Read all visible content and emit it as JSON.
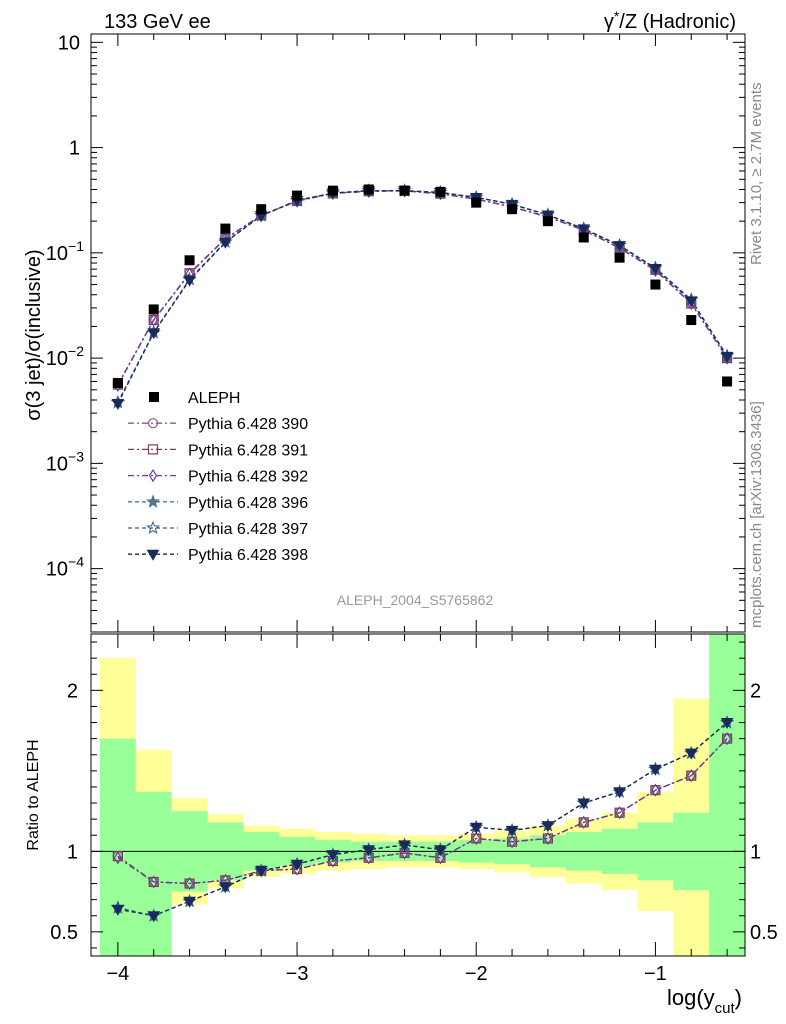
{
  "header": {
    "left": "133 GeV ee",
    "right_main": "γ",
    "right_star": "*",
    "right_rest": "/Z (Hadronic)"
  },
  "side_labels": {
    "rivet": "Rivet 3.1.10, ≥ 2.7M events",
    "mcplots": "mcplots.cern.ch [arXiv:1306.3436]"
  },
  "analysis_id": "ALEPH_2004_S5765862",
  "main_plot": {
    "ylabel": "σ(3 jet)/σ(inclusive)",
    "ytick_labels": [
      {
        "base": "10",
        "exp": "",
        "value": 10
      },
      {
        "base": "1",
        "exp": "",
        "value": 1
      },
      {
        "base": "10",
        "exp": "−1",
        "value": 0.1
      },
      {
        "base": "10",
        "exp": "−2",
        "value": 0.01
      },
      {
        "base": "10",
        "exp": "−3",
        "value": 0.001
      },
      {
        "base": "10",
        "exp": "−4",
        "value": 0.0001
      }
    ]
  },
  "ratio_plot": {
    "ylabel": "Ratio to ALEPH",
    "ytick_labels": [
      "2",
      "1",
      "0.5"
    ]
  },
  "x_axis": {
    "label_main": "log(y",
    "label_sub": "cut",
    "label_close": ")",
    "tick_labels": [
      "−4",
      "−3",
      "−2",
      "−1"
    ]
  },
  "legend": {
    "entries": [
      "ALEPH",
      "Pythia 6.428 390",
      "Pythia 6.428 391",
      "Pythia 6.428 392",
      "Pythia 6.428 396",
      "Pythia 6.428 397",
      "Pythia 6.428 398"
    ]
  },
  "colors": {
    "data": "#000000",
    "s390": "#8a5a8a",
    "s391": "#7a4050",
    "s392": "#6a3d9a",
    "s396": "#4a7a8a",
    "s397": "#3a5a8a",
    "s398": "#1a2a5a",
    "band_inner": "#99ff99",
    "band_outer": "#ffff99"
  },
  "chart_data": {
    "type": "line",
    "x_scale": "linear",
    "y_scale": "log",
    "xlim": [
      -4.15,
      -0.5
    ],
    "ylim": [
      2.5e-05,
      12
    ],
    "ratio_ylim": [
      0.35,
      2.35
    ],
    "x": [
      -4.0,
      -3.8,
      -3.6,
      -3.4,
      -3.2,
      -3.0,
      -2.8,
      -2.6,
      -2.4,
      -2.2,
      -2.0,
      -1.8,
      -1.6,
      -1.4,
      -1.2,
      -1.0,
      -0.8,
      -0.6
    ],
    "data_values": [
      0.0058,
      0.029,
      0.085,
      0.17,
      0.26,
      0.35,
      0.39,
      0.4,
      0.39,
      0.38,
      0.3,
      0.26,
      0.2,
      0.14,
      0.09,
      0.05,
      0.023,
      0.006
    ],
    "series": [
      {
        "name": "Pythia 6.428 390",
        "values": [
          0.0056,
          0.023,
          0.064,
          0.137,
          0.227,
          0.311,
          0.368,
          0.385,
          0.39,
          0.365,
          0.324,
          0.274,
          0.219,
          0.165,
          0.112,
          0.069,
          0.033,
          0.01
        ]
      },
      {
        "name": "Pythia 6.428 391",
        "values": [
          0.0056,
          0.023,
          0.064,
          0.137,
          0.227,
          0.311,
          0.368,
          0.385,
          0.39,
          0.365,
          0.324,
          0.274,
          0.219,
          0.165,
          0.112,
          0.069,
          0.033,
          0.01
        ]
      },
      {
        "name": "Pythia 6.428 392",
        "values": [
          0.0055,
          0.023,
          0.063,
          0.136,
          0.226,
          0.31,
          0.367,
          0.384,
          0.388,
          0.364,
          0.323,
          0.273,
          0.218,
          0.164,
          0.111,
          0.068,
          0.033,
          0.01
        ]
      },
      {
        "name": "Pythia 6.428 396",
        "values": [
          0.0038,
          0.0175,
          0.056,
          0.127,
          0.226,
          0.315,
          0.37,
          0.39,
          0.39,
          0.375,
          0.337,
          0.29,
          0.23,
          0.17,
          0.118,
          0.072,
          0.036,
          0.0105
        ]
      },
      {
        "name": "Pythia 6.428 397",
        "values": [
          0.0038,
          0.0175,
          0.056,
          0.127,
          0.226,
          0.315,
          0.37,
          0.39,
          0.39,
          0.375,
          0.337,
          0.29,
          0.23,
          0.17,
          0.118,
          0.072,
          0.036,
          0.0105
        ]
      },
      {
        "name": "Pythia 6.428 398",
        "values": [
          0.0037,
          0.0174,
          0.055,
          0.126,
          0.225,
          0.314,
          0.369,
          0.389,
          0.389,
          0.374,
          0.336,
          0.289,
          0.229,
          0.169,
          0.117,
          0.071,
          0.035,
          0.0104
        ]
      }
    ],
    "ratio_series": [
      {
        "name": "Pythia 6.428 390",
        "values": [
          0.97,
          0.81,
          0.8,
          0.82,
          0.88,
          0.89,
          0.94,
          0.96,
          0.99,
          0.96,
          1.08,
          1.06,
          1.08,
          1.18,
          1.24,
          1.38,
          1.47,
          1.7
        ]
      },
      {
        "name": "Pythia 6.428 391",
        "values": [
          0.97,
          0.81,
          0.8,
          0.82,
          0.88,
          0.89,
          0.94,
          0.96,
          0.99,
          0.96,
          1.08,
          1.06,
          1.08,
          1.18,
          1.24,
          1.38,
          1.47,
          1.7
        ]
      },
      {
        "name": "Pythia 6.428 392",
        "values": [
          0.96,
          0.81,
          0.8,
          0.82,
          0.88,
          0.89,
          0.94,
          0.96,
          0.99,
          0.96,
          1.08,
          1.06,
          1.08,
          1.18,
          1.24,
          1.38,
          1.47,
          1.7
        ]
      },
      {
        "name": "Pythia 6.428 396",
        "values": [
          0.65,
          0.6,
          0.69,
          0.78,
          0.88,
          0.92,
          0.98,
          1.01,
          1.04,
          1.01,
          1.15,
          1.13,
          1.16,
          1.3,
          1.37,
          1.51,
          1.61,
          1.8
        ]
      },
      {
        "name": "Pythia 6.428 397",
        "values": [
          0.65,
          0.6,
          0.69,
          0.78,
          0.88,
          0.92,
          0.98,
          1.01,
          1.04,
          1.01,
          1.15,
          1.13,
          1.16,
          1.3,
          1.37,
          1.51,
          1.61,
          1.8
        ]
      },
      {
        "name": "Pythia 6.428 398",
        "values": [
          0.64,
          0.6,
          0.69,
          0.78,
          0.88,
          0.92,
          0.98,
          1.01,
          1.04,
          1.01,
          1.15,
          1.13,
          1.16,
          1.3,
          1.37,
          1.51,
          1.61,
          1.8
        ]
      }
    ],
    "band_edges": [
      -4.1,
      -3.9,
      -3.7,
      -3.5,
      -3.3,
      -3.1,
      -2.9,
      -2.7,
      -2.5,
      -2.3,
      -2.1,
      -1.9,
      -1.7,
      -1.5,
      -1.3,
      -1.1,
      -0.9,
      -0.7,
      -0.5
    ],
    "band_inner": [
      [
        0.3,
        1.7
      ],
      [
        0.3,
        1.37
      ],
      [
        0.75,
        1.25
      ],
      [
        0.82,
        1.18
      ],
      [
        0.88,
        1.12
      ],
      [
        0.91,
        1.09
      ],
      [
        0.93,
        1.07
      ],
      [
        0.94,
        1.06
      ],
      [
        0.94,
        1.06
      ],
      [
        0.94,
        1.06
      ],
      [
        0.93,
        1.07
      ],
      [
        0.92,
        1.08
      ],
      [
        0.9,
        1.1
      ],
      [
        0.88,
        1.12
      ],
      [
        0.86,
        1.14
      ],
      [
        0.82,
        1.18
      ],
      [
        0.76,
        1.24
      ],
      [
        0.3,
        2.35
      ]
    ],
    "band_outer": [
      [
        0.3,
        2.2
      ],
      [
        0.3,
        1.63
      ],
      [
        0.67,
        1.33
      ],
      [
        0.77,
        1.23
      ],
      [
        0.84,
        1.16
      ],
      [
        0.86,
        1.14
      ],
      [
        0.88,
        1.12
      ],
      [
        0.89,
        1.11
      ],
      [
        0.9,
        1.1
      ],
      [
        0.9,
        1.1
      ],
      [
        0.89,
        1.11
      ],
      [
        0.87,
        1.13
      ],
      [
        0.84,
        1.16
      ],
      [
        0.8,
        1.2
      ],
      [
        0.76,
        1.24
      ],
      [
        0.63,
        1.37
      ],
      [
        0.3,
        1.95
      ],
      [
        0.3,
        2.35
      ]
    ]
  }
}
